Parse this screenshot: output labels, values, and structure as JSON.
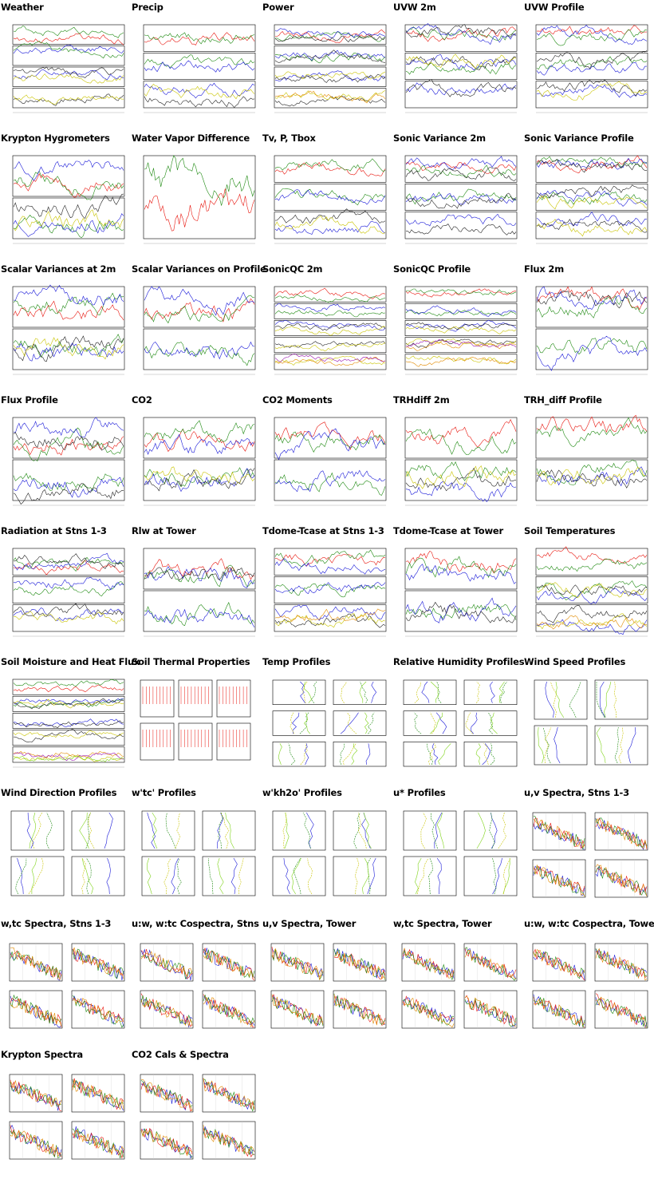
{
  "cells": [
    {
      "title": "Weather",
      "kind": "ts",
      "panels": 4
    },
    {
      "title": "Precip",
      "kind": "ts",
      "panels": 3
    },
    {
      "title": "Power",
      "kind": "ts",
      "panels": 4
    },
    {
      "title": "UVW 2m",
      "kind": "ts",
      "panels": 3
    },
    {
      "title": "UVW Profile",
      "kind": "ts",
      "panels": 3
    },
    {
      "title": "Krypton Hygrometers",
      "kind": "ts",
      "panels": 2
    },
    {
      "title": "Water Vapor Difference",
      "kind": "ts",
      "panels": 1
    },
    {
      "title": "Tv, P, Tbox",
      "kind": "ts",
      "panels": 3
    },
    {
      "title": "Sonic Variance 2m",
      "kind": "ts",
      "panels": 3
    },
    {
      "title": "Sonic Variance Profile",
      "kind": "ts",
      "panels": 3
    },
    {
      "title": "Scalar Variances at 2m",
      "kind": "ts",
      "panels": 2
    },
    {
      "title": "Scalar Variances on Profile",
      "kind": "ts",
      "panels": 2
    },
    {
      "title": "SonicQC 2m",
      "kind": "ts",
      "panels": 5
    },
    {
      "title": "SonicQC Profile",
      "kind": "ts",
      "panels": 5
    },
    {
      "title": "Flux 2m",
      "kind": "ts",
      "panels": 2
    },
    {
      "title": "Flux Profile",
      "kind": "ts",
      "panels": 2
    },
    {
      "title": "CO2",
      "kind": "ts",
      "panels": 2
    },
    {
      "title": "CO2 Moments",
      "kind": "ts",
      "panels": 2
    },
    {
      "title": "TRHdiff 2m",
      "kind": "ts",
      "panels": 2
    },
    {
      "title": "TRH_diff Profile",
      "kind": "ts",
      "panels": 2
    },
    {
      "title": "Radiation at Stns 1-3",
      "kind": "ts",
      "panels": 3
    },
    {
      "title": "Rlw at Tower",
      "kind": "ts",
      "panels": 2
    },
    {
      "title": "Tdome-Tcase at Stns 1-3",
      "kind": "ts",
      "panels": 3
    },
    {
      "title": "Tdome-Tcase at Tower",
      "kind": "ts",
      "panels": 2
    },
    {
      "title": "Soil Temperatures",
      "kind": "ts",
      "panels": 3
    },
    {
      "title": "Soil Moisture and Heat Flux",
      "kind": "ts",
      "panels": 5
    },
    {
      "title": "Soil Thermal Properties",
      "kind": "grid",
      "panels": 6
    },
    {
      "title": "Temp Profiles",
      "kind": "prof",
      "panels": 6
    },
    {
      "title": "Relative Humidity Profiles",
      "kind": "prof",
      "panels": 6
    },
    {
      "title": "Wind Speed Profiles",
      "kind": "prof",
      "panels": 4
    },
    {
      "title": "Wind Direction Profiles",
      "kind": "prof",
      "panels": 4
    },
    {
      "title": "w'tc' Profiles",
      "kind": "prof",
      "panels": 4
    },
    {
      "title": "w'kh2o' Profiles",
      "kind": "prof",
      "panels": 4
    },
    {
      "title": "u* Profiles",
      "kind": "prof",
      "panels": 4
    },
    {
      "title": "u,v Spectra, Stns 1-3",
      "kind": "spec",
      "panels": 4
    },
    {
      "title": "w,tc Spectra, Stns 1-3",
      "kind": "spec",
      "panels": 4
    },
    {
      "title": "u:w, w:tc Cospectra, Stns",
      "kind": "spec",
      "panels": 4
    },
    {
      "title": "u,v Spectra, Tower",
      "kind": "spec",
      "panels": 4
    },
    {
      "title": "w,tc Spectra, Tower",
      "kind": "spec",
      "panels": 4
    },
    {
      "title": "u:w, w:tc Cospectra, Tower",
      "kind": "spec",
      "panels": 4
    },
    {
      "title": "Krypton Spectra",
      "kind": "spec",
      "panels": 4
    },
    {
      "title": "CO2 Cals & Spectra",
      "kind": "spec",
      "panels": 4
    }
  ],
  "colors": {
    "red": "#e8170f",
    "green": "#1f8a12",
    "blue": "#1a1ad8",
    "black": "#222222",
    "yellow": "#c9c400",
    "orange": "#e28a00",
    "purple": "#9a15b0",
    "lime": "#7fd41a",
    "gray": "#777777",
    "frame": "#000000"
  }
}
